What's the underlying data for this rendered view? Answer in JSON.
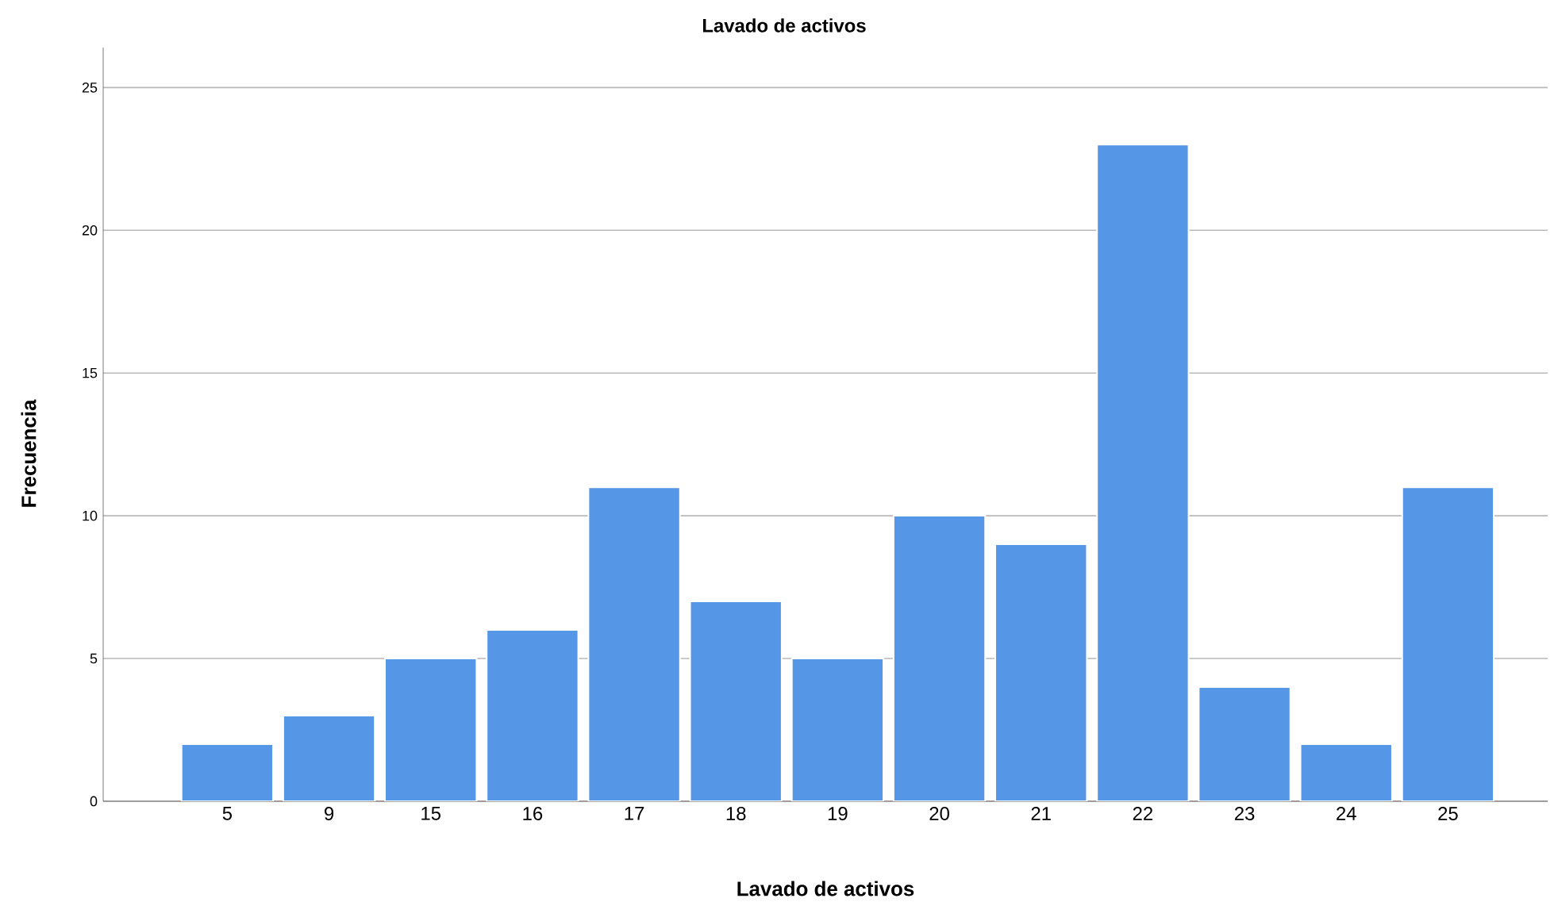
{
  "chart_data": {
    "type": "bar",
    "title": "Lavado de activos",
    "xlabel": "Lavado de activos",
    "ylabel": "Frecuencia",
    "categories": [
      "5",
      "9",
      "15",
      "16",
      "17",
      "18",
      "19",
      "20",
      "21",
      "22",
      "23",
      "24",
      "25"
    ],
    "values": [
      2,
      3,
      5,
      6,
      11,
      7,
      5,
      10,
      9,
      23,
      4,
      2,
      11
    ],
    "color": "#5596e6",
    "ylim": [
      0,
      26.4
    ],
    "yticks": [
      0,
      5,
      10,
      15,
      20,
      25
    ],
    "grid": "y"
  }
}
